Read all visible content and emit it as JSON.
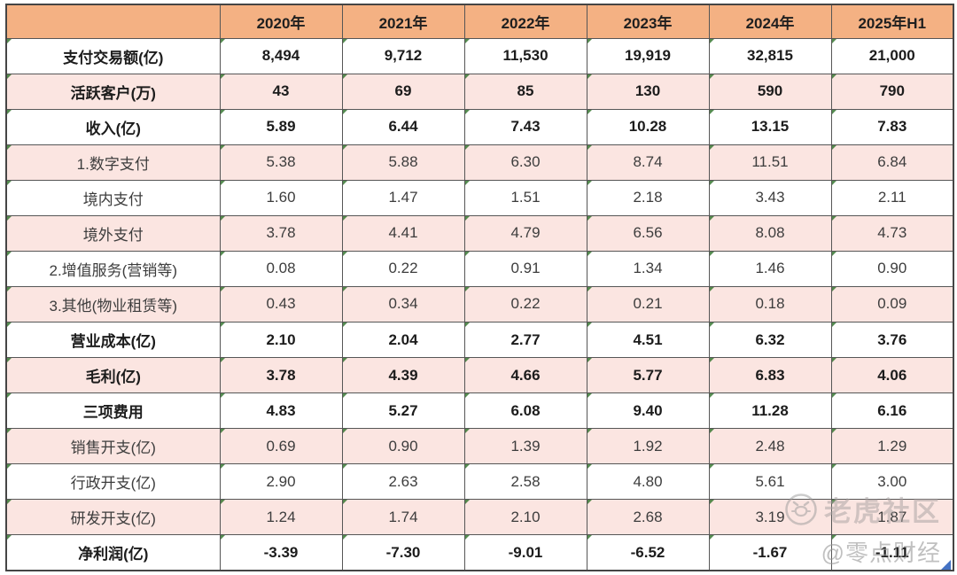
{
  "table": {
    "header": {
      "corner": "",
      "years": [
        "2020年",
        "2021年",
        "2022年",
        "2023年",
        "2024年",
        "2025年H1"
      ]
    },
    "rows": [
      {
        "label": "支付交易额(亿)",
        "values": [
          "8,494",
          "9,712",
          "11,530",
          "19,919",
          "32,815",
          "21,000"
        ],
        "bold": true,
        "shade": "white"
      },
      {
        "label": "活跃客户(万)",
        "values": [
          "43",
          "69",
          "85",
          "130",
          "590",
          "790"
        ],
        "bold": true,
        "shade": "pink"
      },
      {
        "label": "收入(亿)",
        "values": [
          "5.89",
          "6.44",
          "7.43",
          "10.28",
          "13.15",
          "7.83"
        ],
        "bold": true,
        "shade": "white"
      },
      {
        "label": "1.数字支付",
        "values": [
          "5.38",
          "5.88",
          "6.30",
          "8.74",
          "11.51",
          "6.84"
        ],
        "bold": false,
        "shade": "pink"
      },
      {
        "label": "境内支付",
        "values": [
          "1.60",
          "1.47",
          "1.51",
          "2.18",
          "3.43",
          "2.11"
        ],
        "bold": false,
        "shade": "white"
      },
      {
        "label": "境外支付",
        "values": [
          "3.78",
          "4.41",
          "4.79",
          "6.56",
          "8.08",
          "4.73"
        ],
        "bold": false,
        "shade": "pink"
      },
      {
        "label": "2.增值服务(营销等)",
        "values": [
          "0.08",
          "0.22",
          "0.91",
          "1.34",
          "1.46",
          "0.90"
        ],
        "bold": false,
        "shade": "white"
      },
      {
        "label": "3.其他(物业租赁等)",
        "values": [
          "0.43",
          "0.34",
          "0.22",
          "0.21",
          "0.18",
          "0.09"
        ],
        "bold": false,
        "shade": "pink"
      },
      {
        "label": "营业成本(亿)",
        "values": [
          "2.10",
          "2.04",
          "2.77",
          "4.51",
          "6.32",
          "3.76"
        ],
        "bold": true,
        "shade": "white"
      },
      {
        "label": "毛利(亿)",
        "values": [
          "3.78",
          "4.39",
          "4.66",
          "5.77",
          "6.83",
          "4.06"
        ],
        "bold": true,
        "shade": "pink"
      },
      {
        "label": "三项费用",
        "values": [
          "4.83",
          "5.27",
          "6.08",
          "9.40",
          "11.28",
          "6.16"
        ],
        "bold": true,
        "shade": "white"
      },
      {
        "label": "销售开支(亿)",
        "values": [
          "0.69",
          "0.90",
          "1.39",
          "1.92",
          "2.48",
          "1.29"
        ],
        "bold": false,
        "shade": "pink"
      },
      {
        "label": "行政开支(亿)",
        "values": [
          "2.90",
          "2.63",
          "2.58",
          "4.80",
          "5.61",
          "3.00"
        ],
        "bold": false,
        "shade": "white"
      },
      {
        "label": "研发开支(亿)",
        "values": [
          "1.24",
          "1.74",
          "2.10",
          "2.68",
          "3.19",
          "1.87"
        ],
        "bold": false,
        "shade": "pink"
      },
      {
        "label": "净利润(亿)",
        "values": [
          "-3.39",
          "-7.30",
          "-9.01",
          "-6.52",
          "-1.67",
          "-1.11"
        ],
        "bold": true,
        "shade": "white"
      }
    ]
  },
  "watermark": {
    "community": "老虎社区",
    "author": "@零点财经",
    "icon": "tiger-logo-icon"
  },
  "colors": {
    "header_bg": "#F4B183",
    "row_pink": "#FBE5E1",
    "row_white": "#FFFFFF",
    "border": "#565656",
    "corner_flag_green": "#377832",
    "fill_handle_blue": "#4472C4"
  },
  "chart_data": {
    "type": "table",
    "title": "财务数据表(支付业务)",
    "categories": [
      "2020年",
      "2021年",
      "2022年",
      "2023年",
      "2024年",
      "2025年H1"
    ],
    "series": [
      {
        "name": "支付交易额(亿)",
        "values": [
          8494,
          9712,
          11530,
          19919,
          32815,
          21000
        ]
      },
      {
        "name": "活跃客户(万)",
        "values": [
          43,
          69,
          85,
          130,
          590,
          790
        ]
      },
      {
        "name": "收入(亿)",
        "values": [
          5.89,
          6.44,
          7.43,
          10.28,
          13.15,
          7.83
        ]
      },
      {
        "name": "1.数字支付",
        "values": [
          5.38,
          5.88,
          6.3,
          8.74,
          11.51,
          6.84
        ]
      },
      {
        "name": "境内支付",
        "values": [
          1.6,
          1.47,
          1.51,
          2.18,
          3.43,
          2.11
        ]
      },
      {
        "name": "境外支付",
        "values": [
          3.78,
          4.41,
          4.79,
          6.56,
          8.08,
          4.73
        ]
      },
      {
        "name": "2.增值服务(营销等)",
        "values": [
          0.08,
          0.22,
          0.91,
          1.34,
          1.46,
          0.9
        ]
      },
      {
        "name": "3.其他(物业租赁等)",
        "values": [
          0.43,
          0.34,
          0.22,
          0.21,
          0.18,
          0.09
        ]
      },
      {
        "name": "营业成本(亿)",
        "values": [
          2.1,
          2.04,
          2.77,
          4.51,
          6.32,
          3.76
        ]
      },
      {
        "name": "毛利(亿)",
        "values": [
          3.78,
          4.39,
          4.66,
          5.77,
          6.83,
          4.06
        ]
      },
      {
        "name": "三项费用",
        "values": [
          4.83,
          5.27,
          6.08,
          9.4,
          11.28,
          6.16
        ]
      },
      {
        "name": "销售开支(亿)",
        "values": [
          0.69,
          0.9,
          1.39,
          1.92,
          2.48,
          1.29
        ]
      },
      {
        "name": "行政开支(亿)",
        "values": [
          2.9,
          2.63,
          2.58,
          4.8,
          5.61,
          3.0
        ]
      },
      {
        "name": "研发开支(亿)",
        "values": [
          1.24,
          1.74,
          2.1,
          2.68,
          3.19,
          1.87
        ]
      },
      {
        "name": "净利润(亿)",
        "values": [
          -3.39,
          -7.3,
          -9.01,
          -6.52,
          -1.67,
          -1.11
        ]
      }
    ]
  }
}
